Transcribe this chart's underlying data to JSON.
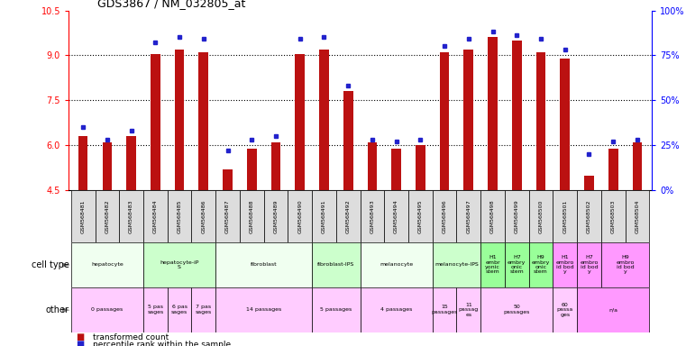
{
  "title": "GDS3867 / NM_032805_at",
  "samples": [
    "GSM568481",
    "GSM568482",
    "GSM568483",
    "GSM568484",
    "GSM568485",
    "GSM568486",
    "GSM568487",
    "GSM568488",
    "GSM568489",
    "GSM568490",
    "GSM568491",
    "GSM568492",
    "GSM568493",
    "GSM568494",
    "GSM568495",
    "GSM568496",
    "GSM568497",
    "GSM568498",
    "GSM568499",
    "GSM568500",
    "GSM568501",
    "GSM568502",
    "GSM568503",
    "GSM568504"
  ],
  "transformed_count": [
    6.3,
    6.1,
    6.3,
    9.05,
    9.2,
    9.1,
    5.2,
    5.9,
    6.1,
    9.05,
    9.2,
    7.8,
    6.1,
    5.9,
    6.0,
    9.1,
    9.2,
    9.6,
    9.5,
    9.1,
    8.9,
    5.0,
    5.9,
    6.1
  ],
  "percentile_rank": [
    35,
    28,
    33,
    82,
    85,
    84,
    22,
    28,
    30,
    84,
    85,
    58,
    28,
    27,
    28,
    80,
    84,
    88,
    86,
    84,
    78,
    20,
    27,
    28
  ],
  "ylim_left": [
    4.5,
    10.5
  ],
  "ylim_right": [
    0,
    100
  ],
  "yticks_left": [
    4.5,
    6.0,
    7.5,
    9.0,
    10.5
  ],
  "yticks_right": [
    0,
    25,
    50,
    75,
    100
  ],
  "ytick_labels_right": [
    "0%",
    "25%",
    "50%",
    "75%",
    "100%"
  ],
  "bar_color": "#bb1111",
  "dot_color": "#2222cc",
  "cell_type_groups": [
    {
      "label": "hepatocyte",
      "start": 0,
      "end": 2,
      "color": "#f0fff0"
    },
    {
      "label": "hepatocyte-iP\nS",
      "start": 3,
      "end": 5,
      "color": "#ccffcc"
    },
    {
      "label": "fibroblast",
      "start": 6,
      "end": 9,
      "color": "#f0fff0"
    },
    {
      "label": "fibroblast-IPS",
      "start": 10,
      "end": 11,
      "color": "#ccffcc"
    },
    {
      "label": "melanocyte",
      "start": 12,
      "end": 14,
      "color": "#f0fff0"
    },
    {
      "label": "melanocyte-IPS",
      "start": 15,
      "end": 16,
      "color": "#ccffcc"
    },
    {
      "label": "H1\nembr\nyonic\nstem",
      "start": 17,
      "end": 17,
      "color": "#99ff99"
    },
    {
      "label": "H7\nembry\nonic\nstem",
      "start": 18,
      "end": 18,
      "color": "#99ff99"
    },
    {
      "label": "H9\nembry\nonic\nstem",
      "start": 19,
      "end": 19,
      "color": "#99ff99"
    },
    {
      "label": "H1\nembro\nid bod\ny",
      "start": 20,
      "end": 20,
      "color": "#ff99ff"
    },
    {
      "label": "H7\nembro\nid bod\ny",
      "start": 21,
      "end": 21,
      "color": "#ff99ff"
    },
    {
      "label": "H9\nembro\nid bod\ny",
      "start": 22,
      "end": 23,
      "color": "#ff99ff"
    }
  ],
  "other_groups": [
    {
      "label": "0 passages",
      "start": 0,
      "end": 2,
      "color": "#ffccff"
    },
    {
      "label": "5 pas\nsages",
      "start": 3,
      "end": 3,
      "color": "#ffccff"
    },
    {
      "label": "6 pas\nsages",
      "start": 4,
      "end": 4,
      "color": "#ffccff"
    },
    {
      "label": "7 pas\nsages",
      "start": 5,
      "end": 5,
      "color": "#ffccff"
    },
    {
      "label": "14 passages",
      "start": 6,
      "end": 9,
      "color": "#ffccff"
    },
    {
      "label": "5 passages",
      "start": 10,
      "end": 11,
      "color": "#ffccff"
    },
    {
      "label": "4 passages",
      "start": 12,
      "end": 14,
      "color": "#ffccff"
    },
    {
      "label": "15\npassages",
      "start": 15,
      "end": 15,
      "color": "#ffccff"
    },
    {
      "label": "11\npassag\nes",
      "start": 16,
      "end": 16,
      "color": "#ffccff"
    },
    {
      "label": "50\npassages",
      "start": 17,
      "end": 19,
      "color": "#ffccff"
    },
    {
      "label": "60\npassa\nges",
      "start": 20,
      "end": 20,
      "color": "#ffccff"
    },
    {
      "label": "n/a",
      "start": 21,
      "end": 23,
      "color": "#ff99ff"
    }
  ],
  "row_label_cell_type": "cell type",
  "row_label_other": "other",
  "legend_red_label": "transformed count",
  "legend_blue_label": "percentile rank within the sample",
  "bar_width": 0.4
}
